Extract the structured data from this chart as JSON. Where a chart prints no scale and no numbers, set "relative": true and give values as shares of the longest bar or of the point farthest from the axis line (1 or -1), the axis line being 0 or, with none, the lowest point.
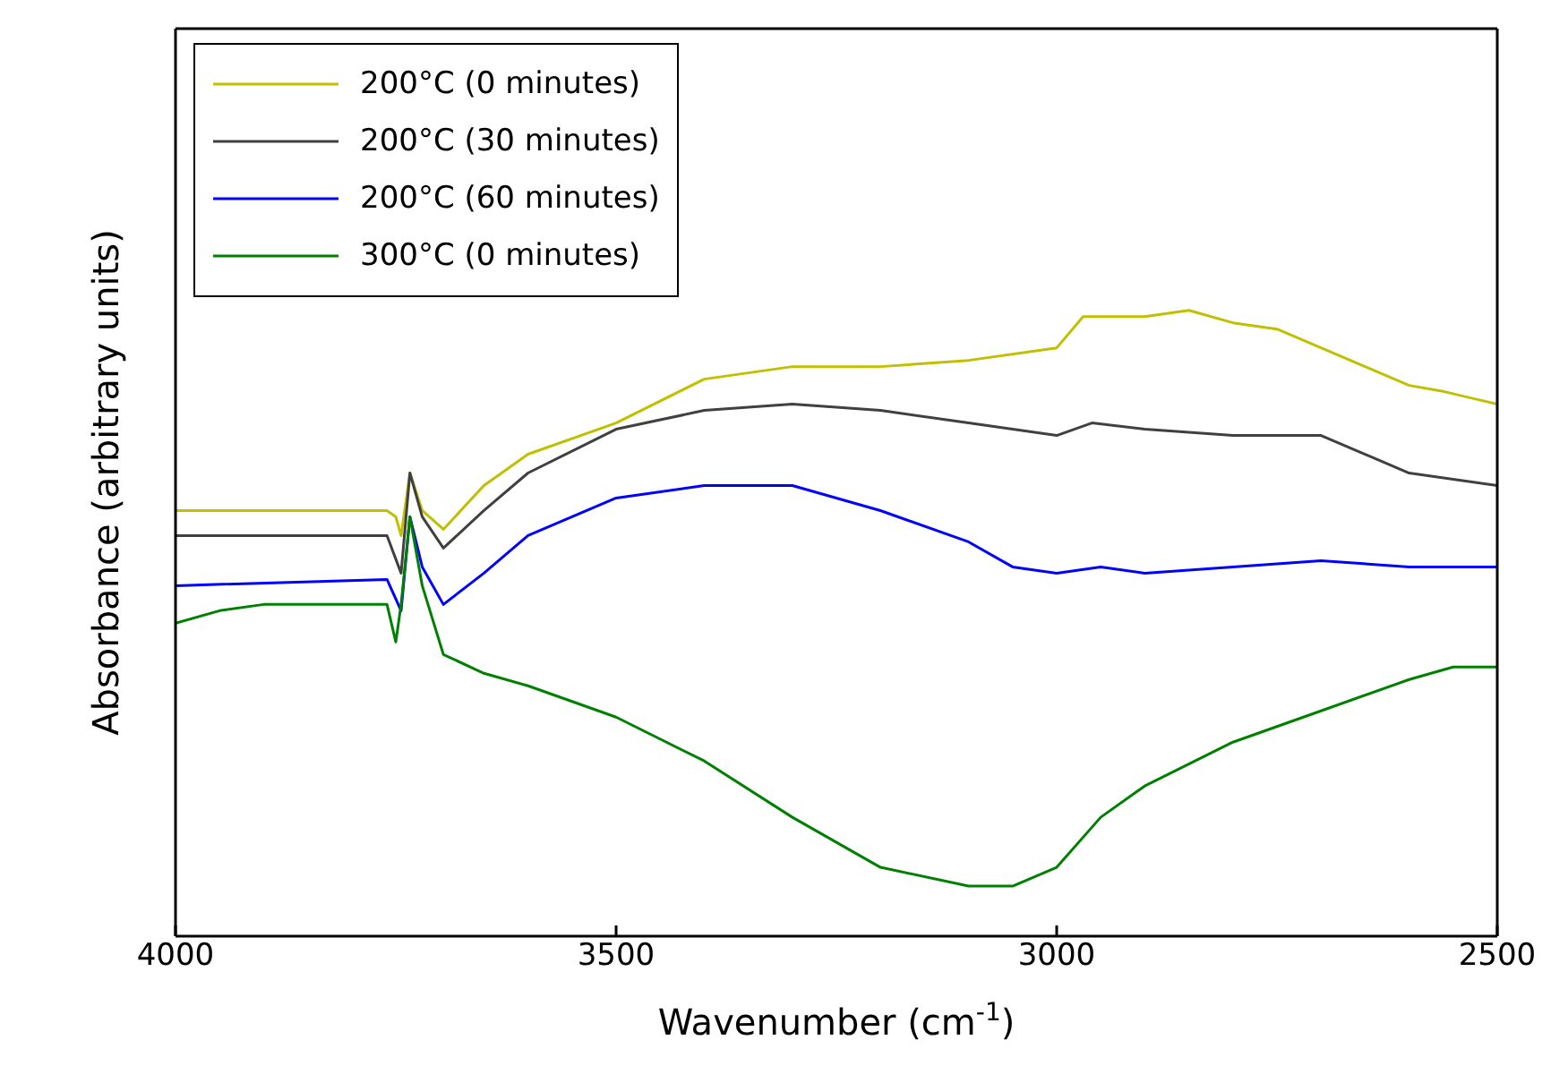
{
  "chart_data": {
    "type": "line",
    "relative": true,
    "xlabel": "Wavenumber (cm$^{-1}$)",
    "ylabel": "Absorbance (arbitrary units)",
    "xlim": [
      4000,
      2500
    ],
    "xticks": [
      4000,
      3500,
      3000,
      2500
    ],
    "grid": false,
    "legend": "top left",
    "marker": "none",
    "line_style": "solid",
    "series": [
      {
        "name": "200°C (0 minutes)",
        "color": "#c0c000",
        "x": [
          4000,
          3800,
          3760,
          3750,
          3744,
          3734,
          3720,
          3696,
          3650,
          3600,
          3500,
          3400,
          3300,
          3200,
          3100,
          3000,
          2970,
          2900,
          2850,
          2800,
          2750,
          2700,
          2650,
          2600,
          2560,
          2530,
          2500
        ],
        "values": [
          0.68,
          0.68,
          0.68,
          0.67,
          0.64,
          0.74,
          0.68,
          0.65,
          0.72,
          0.77,
          0.82,
          0.89,
          0.91,
          0.91,
          0.92,
          0.94,
          0.99,
          0.99,
          1.0,
          0.98,
          0.97,
          0.94,
          0.91,
          0.88,
          0.87,
          0.86,
          0.85
        ]
      },
      {
        "name": "200°C (30 minutes)",
        "color": "#404040",
        "x": [
          4000,
          3760,
          3744,
          3734,
          3720,
          3696,
          3650,
          3600,
          3500,
          3400,
          3300,
          3200,
          3100,
          3000,
          2960,
          2900,
          2800,
          2700,
          2650,
          2600,
          2500
        ],
        "values": [
          0.64,
          0.64,
          0.58,
          0.74,
          0.67,
          0.62,
          0.68,
          0.74,
          0.81,
          0.84,
          0.85,
          0.84,
          0.82,
          0.8,
          0.82,
          0.81,
          0.8,
          0.8,
          0.77,
          0.74,
          0.72
        ]
      },
      {
        "name": "200°C (60 minutes)",
        "color": "#0000ff",
        "x": [
          4000,
          3760,
          3744,
          3734,
          3720,
          3696,
          3650,
          3600,
          3500,
          3400,
          3300,
          3200,
          3100,
          3050,
          3000,
          2950,
          2900,
          2800,
          2700,
          2600,
          2500
        ],
        "values": [
          0.56,
          0.57,
          0.52,
          0.67,
          0.59,
          0.53,
          0.58,
          0.64,
          0.7,
          0.72,
          0.72,
          0.68,
          0.63,
          0.59,
          0.58,
          0.59,
          0.58,
          0.59,
          0.6,
          0.59,
          0.59
        ]
      },
      {
        "name": "300°C (0 minutes)",
        "color": "#008000",
        "x": [
          4000,
          3950,
          3900,
          3800,
          3760,
          3750,
          3744,
          3734,
          3720,
          3696,
          3650,
          3600,
          3500,
          3400,
          3300,
          3200,
          3100,
          3050,
          3000,
          2950,
          2900,
          2800,
          2700,
          2600,
          2550,
          2500
        ],
        "values": [
          0.5,
          0.52,
          0.53,
          0.53,
          0.53,
          0.47,
          0.53,
          0.67,
          0.56,
          0.45,
          0.42,
          0.4,
          0.35,
          0.28,
          0.19,
          0.11,
          0.08,
          0.08,
          0.11,
          0.19,
          0.24,
          0.31,
          0.36,
          0.41,
          0.43,
          0.43
        ]
      }
    ]
  }
}
